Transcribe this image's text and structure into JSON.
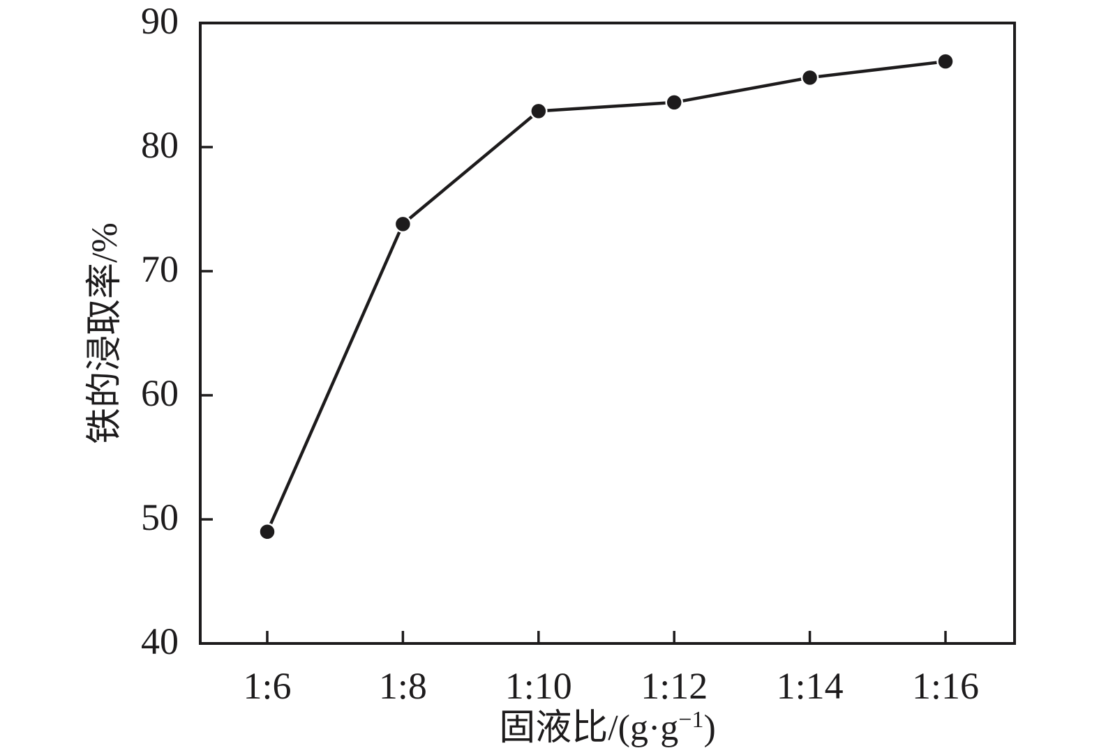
{
  "figure": {
    "background": "#ffffff",
    "ink_color": "#1d1b1c"
  },
  "chart_data": {
    "type": "line",
    "categories": [
      "1:6",
      "1:8",
      "1:10",
      "1:12",
      "1:14",
      "1:16"
    ],
    "values": [
      49.0,
      73.8,
      82.9,
      83.6,
      85.6,
      86.9
    ],
    "xlabel": "固液比/(g·g⁻¹)",
    "xlabel_parts": [
      {
        "text": "固液比/(g·g"
      },
      {
        "text": "−1",
        "superscript": true
      },
      {
        "text": ")"
      }
    ],
    "ylabel": "铁的浸取率/%",
    "ylim": [
      40,
      90
    ],
    "yticks": [
      40,
      50,
      60,
      70,
      80,
      90
    ],
    "grid": false,
    "legend": "none",
    "marker": "filled-circle",
    "line_color": "#1d1b1c",
    "marker_color": "#1d1b1c"
  }
}
